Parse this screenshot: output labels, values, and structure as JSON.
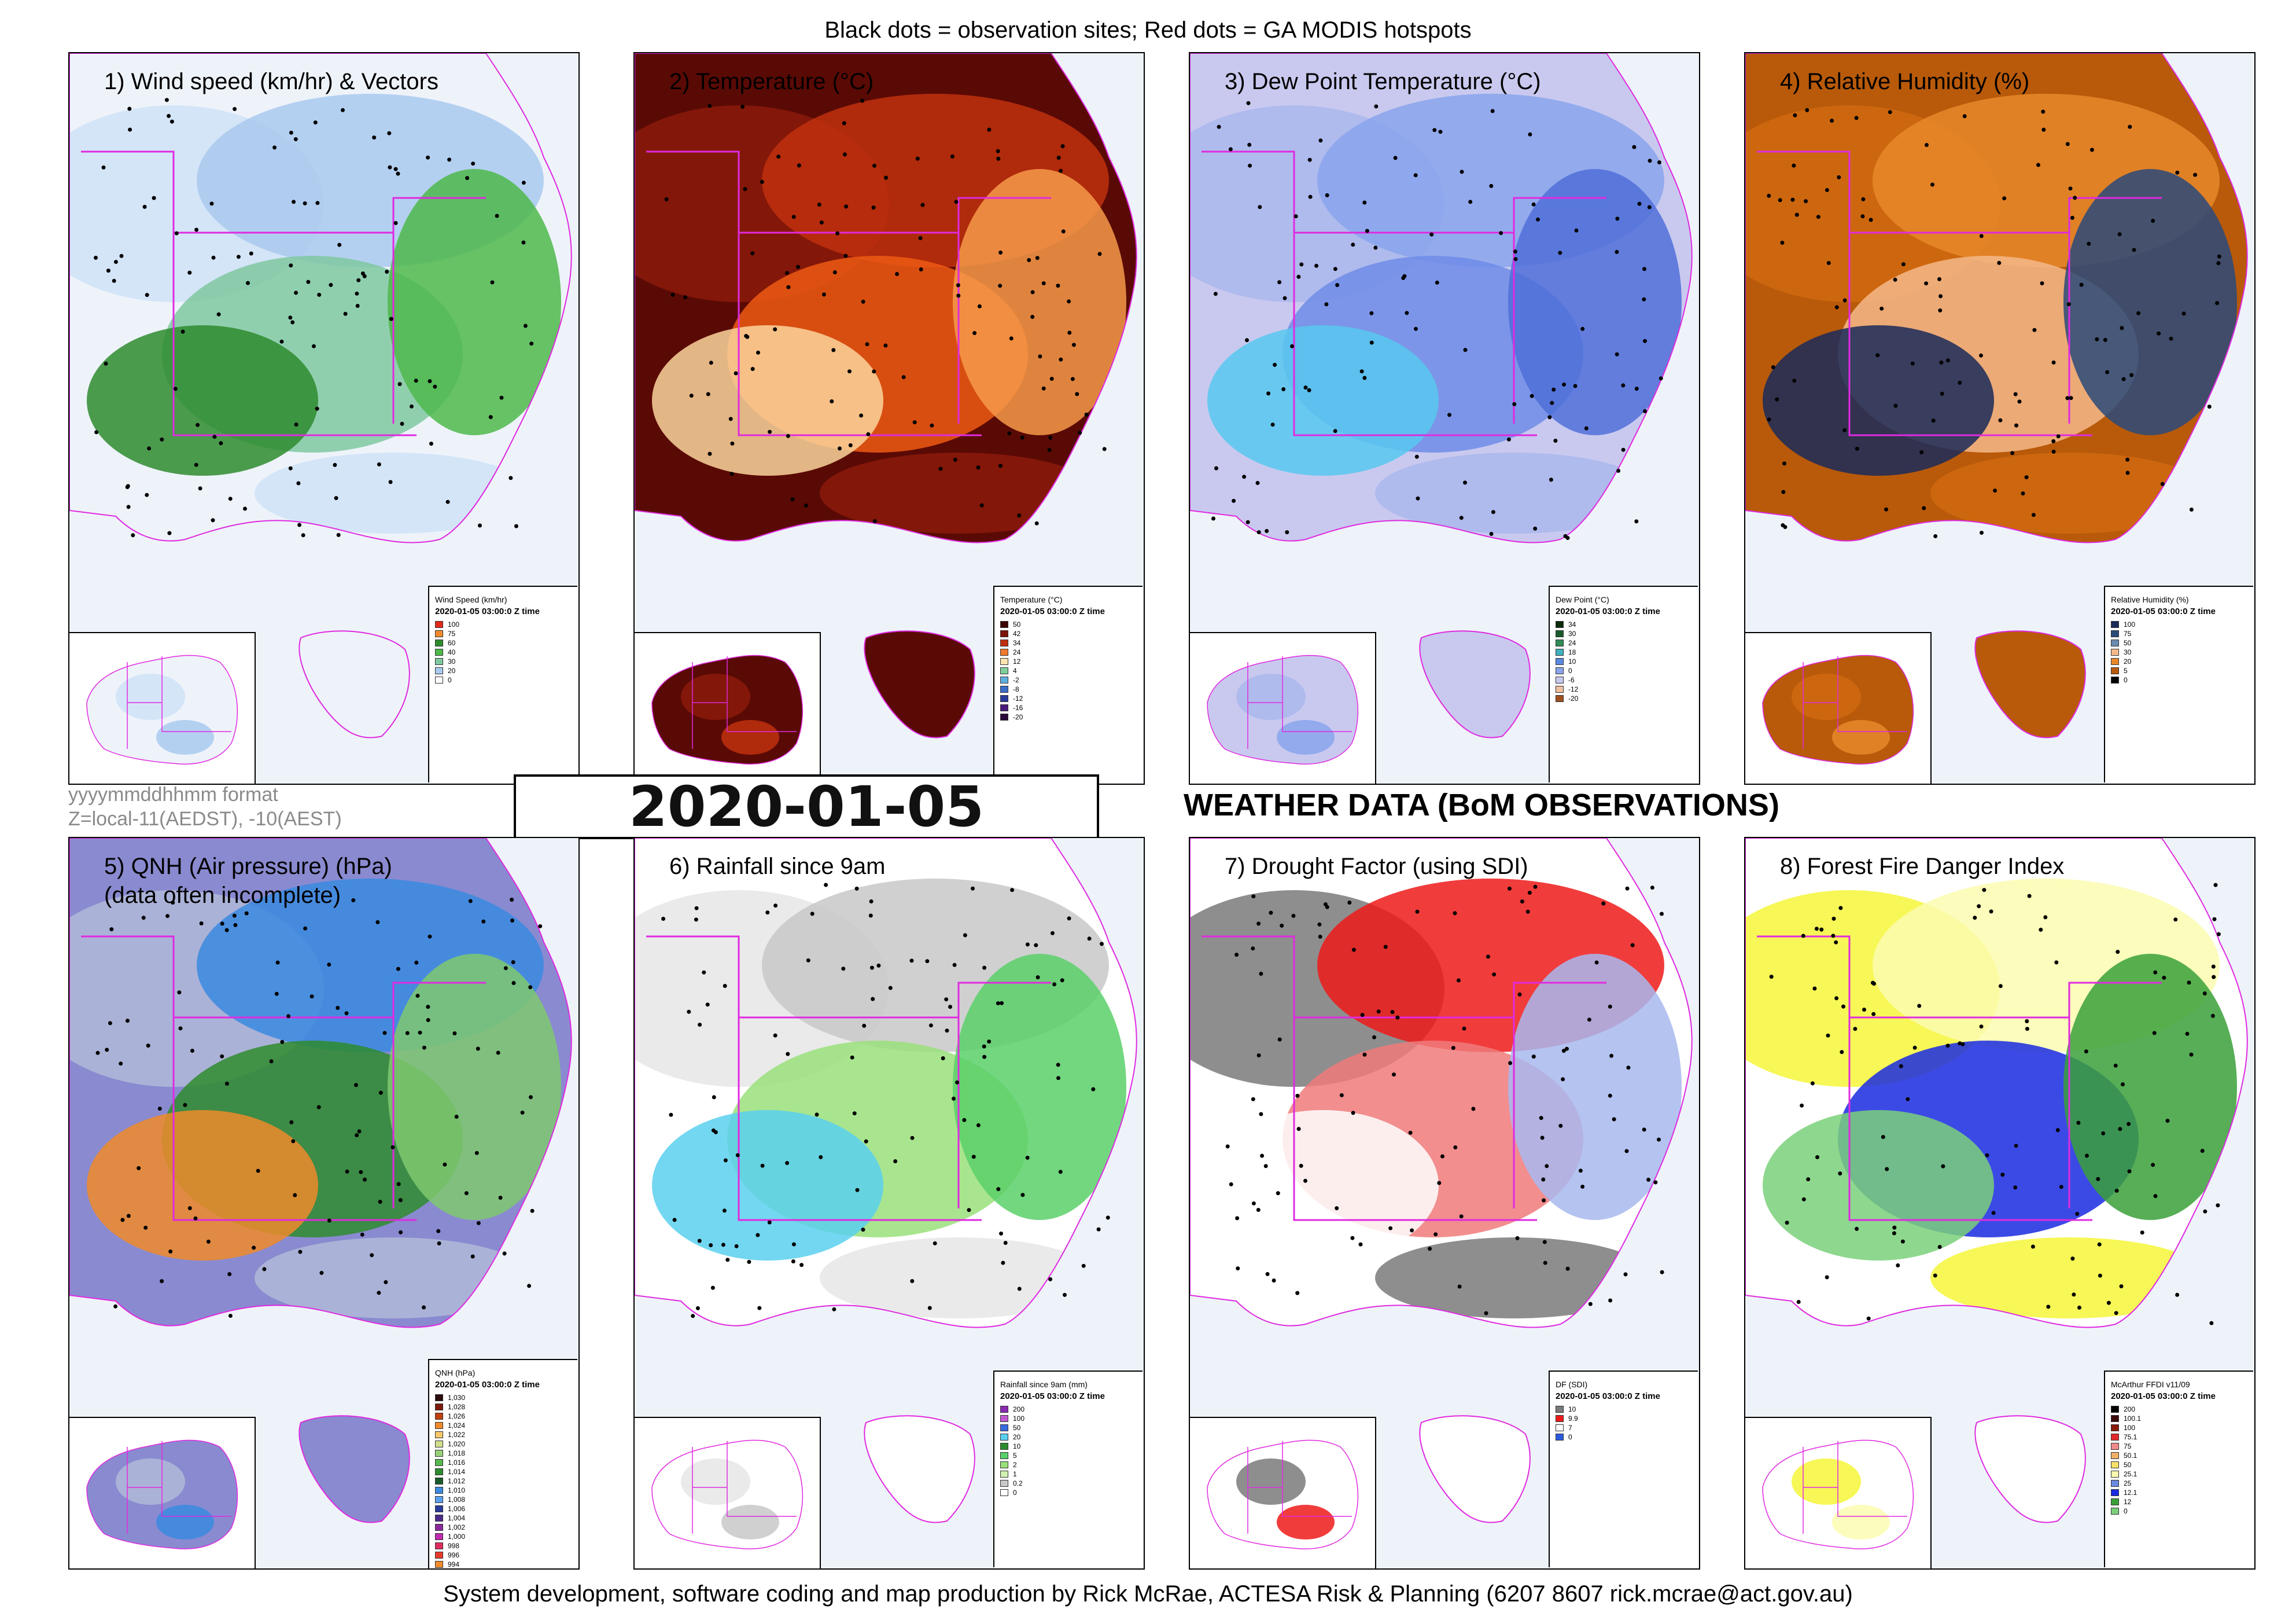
{
  "header": {
    "note": "Black dots = observation sites; Red dots = GA MODIS hotspots"
  },
  "main": {
    "timestamp": "2020-01-05 03:00:0",
    "format_note_1": "yyyymmddhhmm format",
    "format_note_2": "Z=local-11(AEDST), -10(AEST)",
    "title": "WEATHER DATA (BoM OBSERVATIONS)"
  },
  "footer": {
    "credit": "System development, software coding and map production by Rick McRae, ACTESA Risk & Planning (6207 8607 rick.mcrae@act.gov.au)"
  },
  "panels": [
    {
      "title": "1) Wind speed (km/hr) & Vectors",
      "legend_title": "Wind Speed (km/hr)",
      "legend_subtitle": "2020-01-05 03:00:0 Z time",
      "colors": [
        "#eef3fa",
        "#cfe2f7",
        "#a9c9ee",
        "#7fc8a0",
        "#4db84a",
        "#2e8b2e"
      ],
      "legend": [
        {
          "label": "100",
          "color": "#e3281b"
        },
        {
          "label": "75",
          "color": "#f08a2a"
        },
        {
          "label": "60",
          "color": "#2e8b2e"
        },
        {
          "label": "40",
          "color": "#4db84a"
        },
        {
          "label": "30",
          "color": "#7fc8a0"
        },
        {
          "label": "20",
          "color": "#a9c9ee"
        },
        {
          "label": "0",
          "color": "#ffffff"
        }
      ]
    },
    {
      "title": "2) Temperature (°C)",
      "legend_title": "Temperature (°C)",
      "legend_subtitle": "2020-01-05 03:00:0 Z time",
      "colors": [
        "#5a0a05",
        "#8b1a0a",
        "#c0300e",
        "#ee5a14",
        "#f79a4a",
        "#fbd59c"
      ],
      "legend": [
        {
          "label": "50",
          "color": "#3d0503"
        },
        {
          "label": "42",
          "color": "#7a1408"
        },
        {
          "label": "34",
          "color": "#c0300e"
        },
        {
          "label": "24",
          "color": "#f07a2e"
        },
        {
          "label": "12",
          "color": "#fde3b0"
        },
        {
          "label": "4",
          "color": "#7fd09a"
        },
        {
          "label": "-2",
          "color": "#5fb0e0"
        },
        {
          "label": "-8",
          "color": "#3a6ec8"
        },
        {
          "label": "-12",
          "color": "#2a3a9a"
        },
        {
          "label": "-16",
          "color": "#4a1a7a"
        },
        {
          "label": "-20",
          "color": "#2a0a3a"
        }
      ]
    },
    {
      "title": "3) Dew Point Temperature (°C)",
      "legend_title": "Dew Point (°C)",
      "legend_subtitle": "2020-01-05 03:00:0 Z time",
      "colors": [
        "#c9c9ef",
        "#aab7ec",
        "#8aa4ec",
        "#6e8ce6",
        "#5070d8",
        "#58c8ee"
      ],
      "legend": [
        {
          "label": "34",
          "color": "#0a2a0a"
        },
        {
          "label": "30",
          "color": "#1a5a2a"
        },
        {
          "label": "24",
          "color": "#2e8b57"
        },
        {
          "label": "18",
          "color": "#3fb0c0"
        },
        {
          "label": "10",
          "color": "#5a8ae0"
        },
        {
          "label": "0",
          "color": "#8aa4ec"
        },
        {
          "label": "-6",
          "color": "#c9c9ef"
        },
        {
          "label": "-12",
          "color": "#f0c0a0"
        },
        {
          "label": "-20",
          "color": "#a05020"
        }
      ]
    },
    {
      "title": "4) Relative Humidity (%)",
      "legend_title": "Relative Humidity (%)",
      "legend_subtitle": "2020-01-05 03:00:0 Z time",
      "colors": [
        "#b85a0a",
        "#d06a10",
        "#e8882a",
        "#f4b98a",
        "#2a4a7a",
        "#1a2a5a"
      ],
      "legend": [
        {
          "label": "100",
          "color": "#1a2a5a"
        },
        {
          "label": "75",
          "color": "#2a4a7a"
        },
        {
          "label": "50",
          "color": "#6a8ab0"
        },
        {
          "label": "30",
          "color": "#f4b98a"
        },
        {
          "label": "20",
          "color": "#e8882a"
        },
        {
          "label": "5",
          "color": "#b85a0a"
        },
        {
          "label": "0",
          "color": "#000000"
        }
      ]
    },
    {
      "title": "5) QNH (Air pressure) (hPa)\n(data often incomplete)",
      "legend_title": "QNH (hPa)",
      "legend_subtitle": "2020-01-05 03:00:0 Z time",
      "colors": [
        "#8a8ad0",
        "#b0b8d8",
        "#3a8ae0",
        "#2e8b2e",
        "#7fc870",
        "#ee8a2a"
      ],
      "legend": [
        {
          "label": "1,030",
          "color": "#2a0a0a"
        },
        {
          "label": "1,028",
          "color": "#7a1a0a"
        },
        {
          "label": "1,026",
          "color": "#c0400e"
        },
        {
          "label": "1,024",
          "color": "#ee8a2a"
        },
        {
          "label": "1,022",
          "color": "#f6c86a"
        },
        {
          "label": "1,020",
          "color": "#d0e08a"
        },
        {
          "label": "1,018",
          "color": "#9ad07a"
        },
        {
          "label": "1,016",
          "color": "#5ab850"
        },
        {
          "label": "1,014",
          "color": "#2e8b2e"
        },
        {
          "label": "1,012",
          "color": "#1a5a2a"
        },
        {
          "label": "1,010",
          "color": "#3a8ae0"
        },
        {
          "label": "1,008",
          "color": "#5aa0f0"
        },
        {
          "label": "1,006",
          "color": "#2a3a9a"
        },
        {
          "label": "1,004",
          "color": "#4a2a8a"
        },
        {
          "label": "1,002",
          "color": "#8a2a9a"
        },
        {
          "label": "1,000",
          "color": "#c02ab0"
        },
        {
          "label": "998",
          "color": "#e02a60"
        },
        {
          "label": "996",
          "color": "#e83a2a"
        },
        {
          "label": "994",
          "color": "#f08a2a"
        }
      ]
    },
    {
      "title": "6) Rainfall since 9am",
      "legend_title": "Rainfall since 9am (mm)",
      "legend_subtitle": "2020-01-05 03:00:0 Z time",
      "colors": [
        "#ffffff",
        "#e6e6e6",
        "#c8c8c8",
        "#9ae07a",
        "#5ad06a",
        "#5ad0ee"
      ],
      "legend": [
        {
          "label": "200",
          "color": "#8a2ab0"
        },
        {
          "label": "100",
          "color": "#c05ad0"
        },
        {
          "label": "50",
          "color": "#3a6ae0"
        },
        {
          "label": "20",
          "color": "#5ad0ee"
        },
        {
          "label": "10",
          "color": "#2e8b2e"
        },
        {
          "label": "5",
          "color": "#5ad06a"
        },
        {
          "label": "2",
          "color": "#9ae07a"
        },
        {
          "label": "1",
          "color": "#d0f0b0"
        },
        {
          "label": "0.2",
          "color": "#c8c8c8"
        },
        {
          "label": "0",
          "color": "#ffffff"
        }
      ]
    },
    {
      "title": "7) Drought Factor (using SDI)",
      "legend_title": "DF (SDI)",
      "legend_subtitle": "2020-01-05 03:00:0 Z time",
      "colors": [
        "#ffffff",
        "#7a7a7a",
        "#ee1a1a",
        "#f07a7a",
        "#a8b8ee",
        "#ffffff"
      ],
      "legend": [
        {
          "label": "10",
          "color": "#7a7a7a"
        },
        {
          "label": "9.9",
          "color": "#ee1a1a"
        },
        {
          "label": "7",
          "color": "#ffffff"
        },
        {
          "label": "0",
          "color": "#2a5ae0"
        }
      ]
    },
    {
      "title": "8) Forest Fire Danger Index",
      "legend_title": "McArthur FFDI v11/09",
      "legend_subtitle": "2020-01-05 03:00:0 Z time",
      "colors": [
        "#ffffff",
        "#f6f63a",
        "#fbfbb0",
        "#1a2ae0",
        "#3aa03a",
        "#7ad07a"
      ],
      "legend": [
        {
          "label": "200",
          "color": "#000000"
        },
        {
          "label": "100.1",
          "color": "#3a0a0a"
        },
        {
          "label": "100",
          "color": "#8a1a0a"
        },
        {
          "label": "75.1",
          "color": "#e02a2a"
        },
        {
          "label": "75",
          "color": "#f08a8a"
        },
        {
          "label": "50.1",
          "color": "#f0b06a"
        },
        {
          "label": "50",
          "color": "#f6e06a"
        },
        {
          "label": "25.1",
          "color": "#fbfbb0"
        },
        {
          "label": "25",
          "color": "#6a8ae0"
        },
        {
          "label": "12.1",
          "color": "#1a2ae0"
        },
        {
          "label": "12",
          "color": "#3aa03a"
        },
        {
          "label": "0",
          "color": "#7ad07a"
        }
      ]
    }
  ]
}
